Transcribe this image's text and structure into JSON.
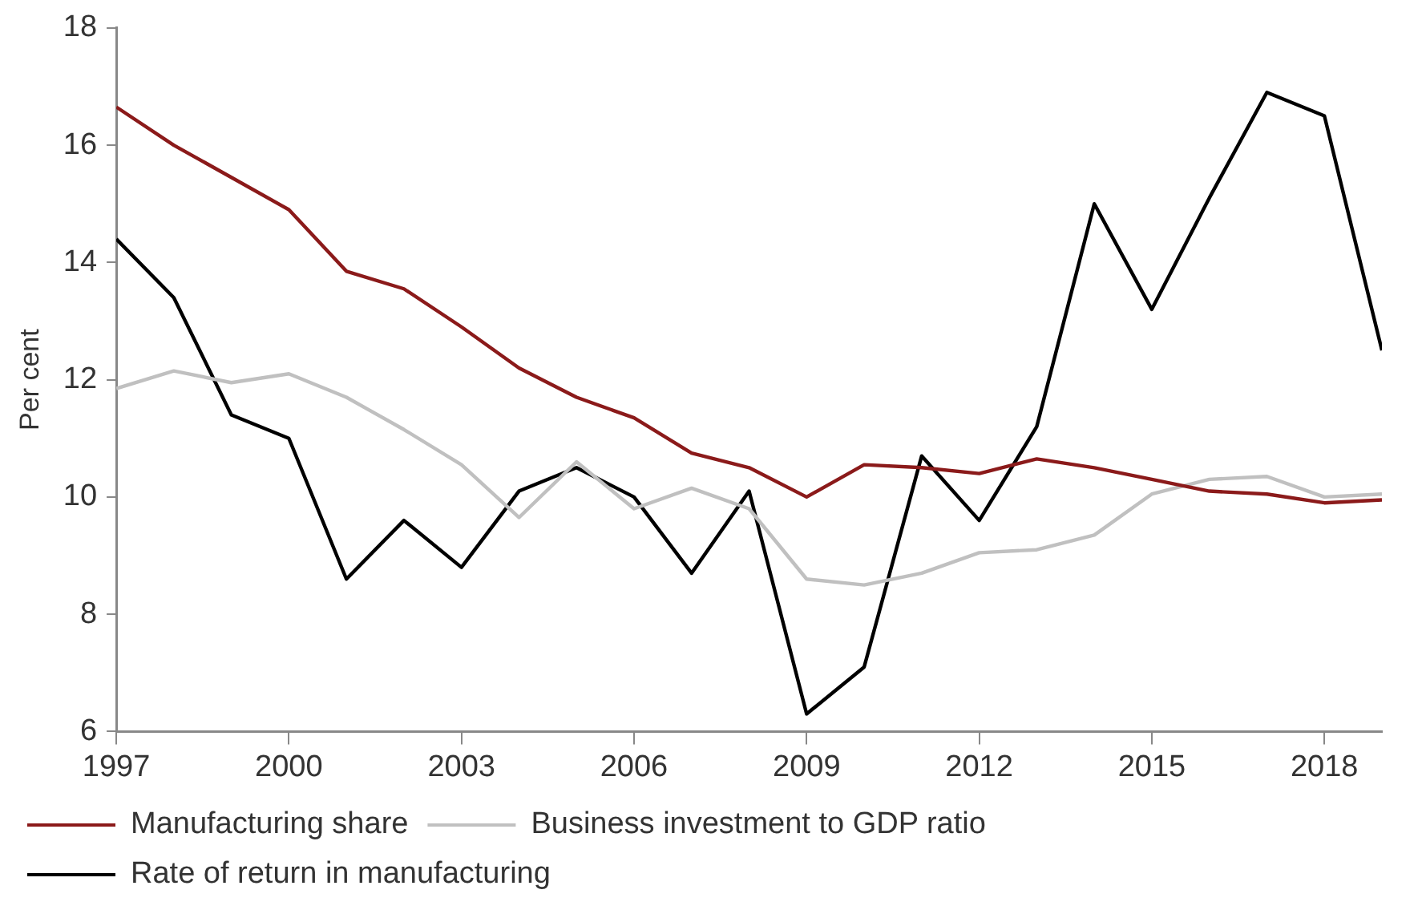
{
  "chart_data": {
    "type": "line",
    "ylabel": "Per cent",
    "x": [
      1997,
      1998,
      1999,
      2000,
      2001,
      2002,
      2003,
      2004,
      2005,
      2006,
      2007,
      2008,
      2009,
      2010,
      2011,
      2012,
      2013,
      2014,
      2015,
      2016,
      2017,
      2018,
      2019
    ],
    "series": [
      {
        "name": "Manufacturing share",
        "color": "#8b1a1a",
        "values": [
          16.65,
          16.0,
          15.45,
          14.9,
          13.85,
          13.55,
          12.9,
          12.2,
          11.7,
          11.35,
          10.75,
          10.5,
          10.0,
          10.55,
          10.5,
          10.4,
          10.65,
          10.5,
          10.3,
          10.1,
          10.05,
          9.9,
          9.95
        ]
      },
      {
        "name": "Business investment to GDP ratio",
        "color": "#c0c0c0",
        "values": [
          11.85,
          12.15,
          11.95,
          12.1,
          11.7,
          11.15,
          10.55,
          9.65,
          10.6,
          9.8,
          10.15,
          9.8,
          8.6,
          8.5,
          8.7,
          9.05,
          9.1,
          9.35,
          10.05,
          10.3,
          10.35,
          10.0,
          10.05
        ]
      },
      {
        "name": "Rate of return in manufacturing",
        "color": "#000000",
        "values": [
          14.4,
          13.4,
          11.4,
          11.0,
          8.6,
          9.6,
          8.8,
          10.1,
          10.5,
          10.0,
          8.7,
          10.1,
          6.3,
          7.1,
          10.7,
          9.6,
          11.2,
          15.0,
          13.2,
          15.1,
          16.9,
          16.5,
          12.5
        ]
      }
    ],
    "xlim": [
      1997,
      2019
    ],
    "xticks": [
      1997,
      2000,
      2003,
      2006,
      2009,
      2012,
      2015,
      2018
    ],
    "ylim": [
      6,
      18
    ],
    "yticks": [
      6,
      8,
      10,
      12,
      14,
      16,
      18
    ],
    "grid": false,
    "legend": "bottom",
    "marker": "none",
    "line_style": "solid"
  }
}
